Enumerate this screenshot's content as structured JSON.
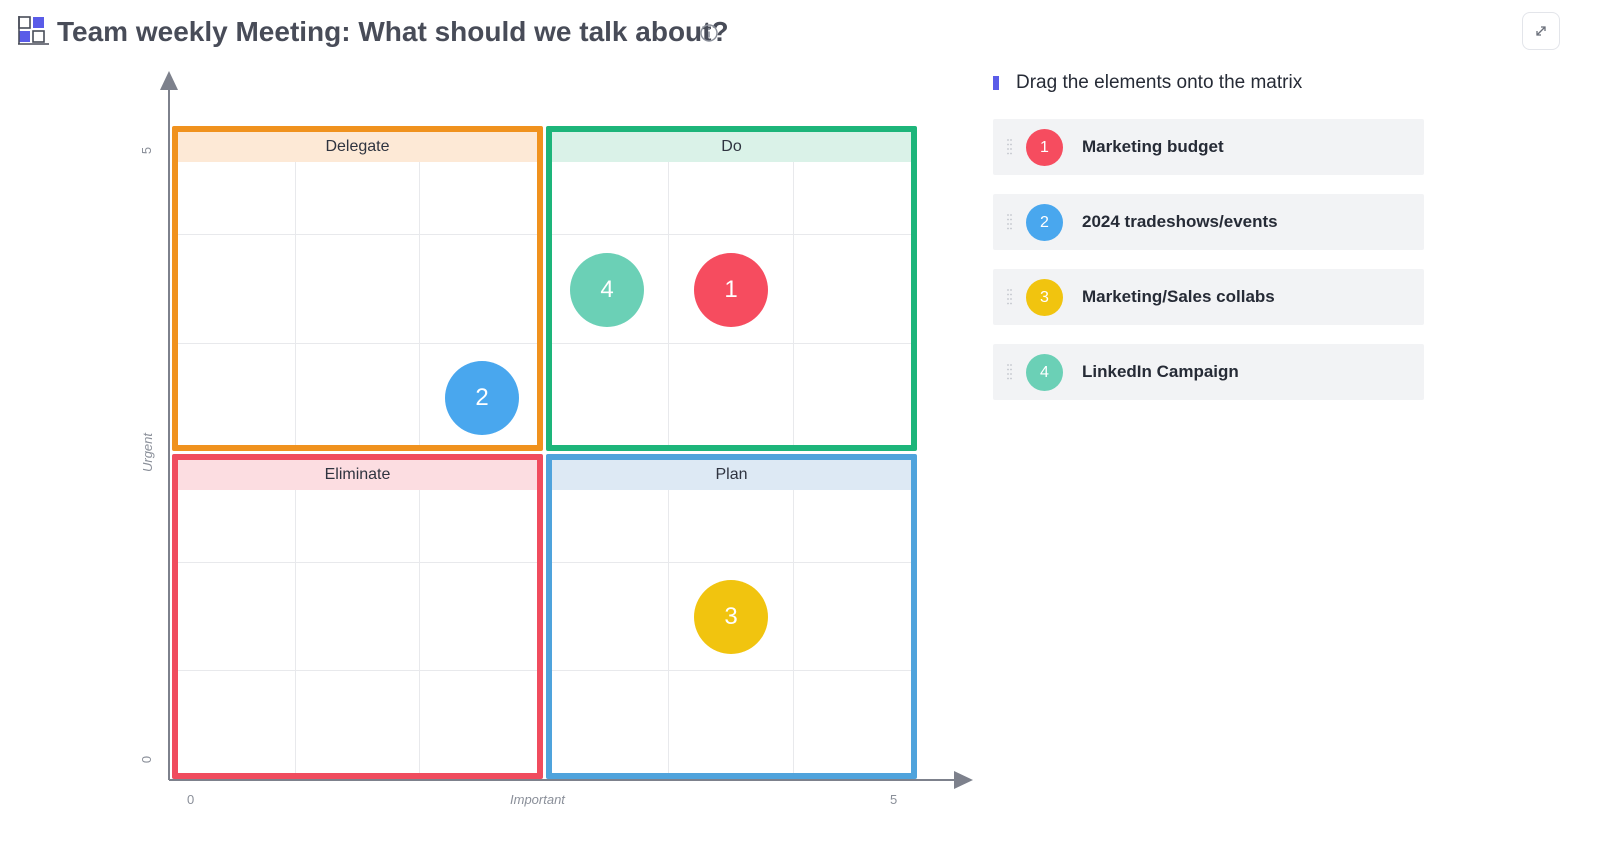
{
  "header": {
    "title": "Team weekly Meeting: What should we talk about?",
    "icon": "matrix-icon",
    "info_icon": "info-icon",
    "expand_icon": "expand-icon"
  },
  "matrix": {
    "y_axis_label": "Urgent",
    "x_axis_label": "Important",
    "y_min_label": "0",
    "y_max_label": "5",
    "x_min_label": "0",
    "x_max_label": "5",
    "quadrants": [
      {
        "id": "delegate",
        "label": "Delegate",
        "color": "#f0921e",
        "header_bg": "#fde9d6"
      },
      {
        "id": "do",
        "label": "Do",
        "color": "#1db57a",
        "header_bg": "#daf2e8"
      },
      {
        "id": "eliminate",
        "label": "Eliminate",
        "color": "#f04c5e",
        "header_bg": "#fcdde1"
      },
      {
        "id": "plan",
        "label": "Plan",
        "color": "#4fa3dc",
        "header_bg": "#dde9f4"
      }
    ],
    "placed_items": [
      {
        "number": "1",
        "color": "#f64c5f"
      },
      {
        "number": "2",
        "color": "#49a7ee"
      },
      {
        "number": "3",
        "color": "#f1c40f"
      },
      {
        "number": "4",
        "color": "#6bd0b6"
      }
    ]
  },
  "panel": {
    "heading": "Drag the elements onto the matrix",
    "accent": "#5a5ce8",
    "items": [
      {
        "number": "1",
        "label": "Marketing budget",
        "color": "#f64c5f"
      },
      {
        "number": "2",
        "label": "2024 tradeshows/events",
        "color": "#49a7ee"
      },
      {
        "number": "3",
        "label": "Marketing/Sales collabs",
        "color": "#f1c40f"
      },
      {
        "number": "4",
        "label": "LinkedIn Campaign",
        "color": "#6bd0b6"
      }
    ]
  }
}
